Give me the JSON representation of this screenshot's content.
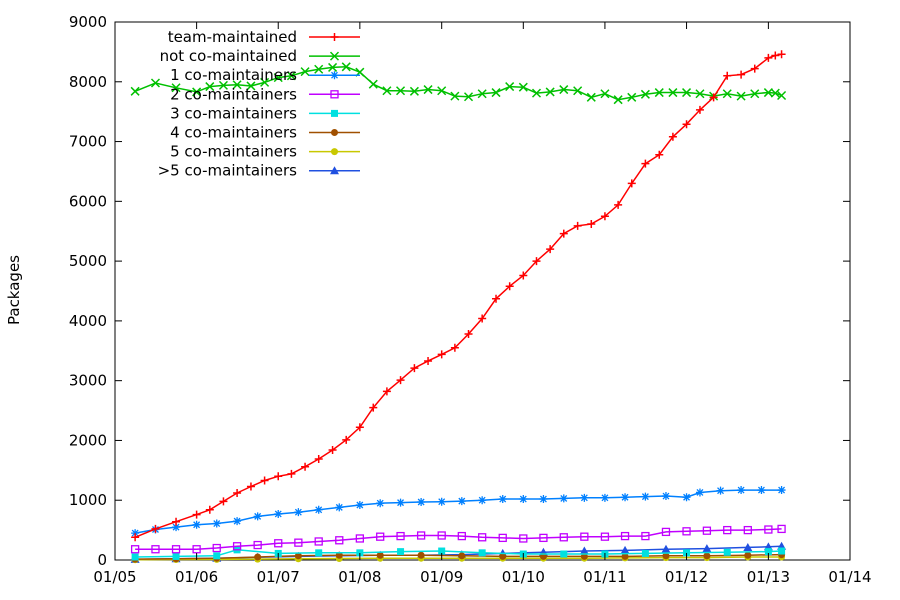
{
  "chart_data": {
    "type": "line",
    "ylabel": "Packages",
    "xlim": [
      "2005-01-01",
      "2014-01-01"
    ],
    "ylim": [
      0,
      9000
    ],
    "x_ticks": [
      {
        "date": "2005-01-01",
        "label": "01/05"
      },
      {
        "date": "2006-01-01",
        "label": "01/06"
      },
      {
        "date": "2007-01-01",
        "label": "01/07"
      },
      {
        "date": "2008-01-01",
        "label": "01/08"
      },
      {
        "date": "2009-01-01",
        "label": "01/09"
      },
      {
        "date": "2010-01-01",
        "label": "01/10"
      },
      {
        "date": "2011-01-01",
        "label": "01/11"
      },
      {
        "date": "2012-01-01",
        "label": "01/12"
      },
      {
        "date": "2013-01-01",
        "label": "01/13"
      },
      {
        "date": "2014-01-01",
        "label": "01/14"
      }
    ],
    "y_ticks": [
      0,
      1000,
      2000,
      3000,
      4000,
      5000,
      6000,
      7000,
      8000,
      9000
    ],
    "grid": false,
    "legend_position": "top-left",
    "series": [
      {
        "name": "team-maintained",
        "color": "#ff0000",
        "marker": "plus",
        "points": [
          [
            "2005-04-01",
            380
          ],
          [
            "2005-07-01",
            520
          ],
          [
            "2005-10-01",
            640
          ],
          [
            "2006-01-01",
            760
          ],
          [
            "2006-03-01",
            840
          ],
          [
            "2006-05-01",
            980
          ],
          [
            "2006-07-01",
            1120
          ],
          [
            "2006-09-01",
            1230
          ],
          [
            "2006-11-01",
            1330
          ],
          [
            "2007-01-01",
            1400
          ],
          [
            "2007-03-01",
            1440
          ],
          [
            "2007-05-01",
            1560
          ],
          [
            "2007-07-01",
            1690
          ],
          [
            "2007-09-01",
            1840
          ],
          [
            "2007-11-01",
            2010
          ],
          [
            "2008-01-01",
            2220
          ],
          [
            "2008-03-01",
            2550
          ],
          [
            "2008-05-01",
            2820
          ],
          [
            "2008-07-01",
            3010
          ],
          [
            "2008-09-01",
            3210
          ],
          [
            "2008-11-01",
            3330
          ],
          [
            "2009-01-01",
            3440
          ],
          [
            "2009-03-01",
            3550
          ],
          [
            "2009-05-01",
            3780
          ],
          [
            "2009-07-01",
            4040
          ],
          [
            "2009-09-01",
            4370
          ],
          [
            "2009-11-01",
            4580
          ],
          [
            "2010-01-01",
            4760
          ],
          [
            "2010-03-01",
            5000
          ],
          [
            "2010-05-01",
            5200
          ],
          [
            "2010-07-01",
            5460
          ],
          [
            "2010-09-01",
            5590
          ],
          [
            "2010-11-01",
            5620
          ],
          [
            "2011-01-01",
            5750
          ],
          [
            "2011-03-01",
            5940
          ],
          [
            "2011-05-01",
            6300
          ],
          [
            "2011-07-01",
            6630
          ],
          [
            "2011-09-01",
            6780
          ],
          [
            "2011-11-01",
            7080
          ],
          [
            "2012-01-01",
            7290
          ],
          [
            "2012-03-01",
            7530
          ],
          [
            "2012-05-01",
            7740
          ],
          [
            "2012-07-01",
            8100
          ],
          [
            "2012-09-01",
            8120
          ],
          [
            "2012-11-01",
            8220
          ],
          [
            "2013-01-01",
            8400
          ],
          [
            "2013-02-01",
            8440
          ],
          [
            "2013-03-01",
            8460
          ]
        ]
      },
      {
        "name": "not co-maintained",
        "color": "#00c000",
        "marker": "x",
        "points": [
          [
            "2005-04-01",
            7840
          ],
          [
            "2005-07-01",
            7980
          ],
          [
            "2005-10-01",
            7900
          ],
          [
            "2006-01-01",
            7830
          ],
          [
            "2006-03-01",
            7920
          ],
          [
            "2006-05-01",
            7940
          ],
          [
            "2006-07-01",
            7950
          ],
          [
            "2006-09-01",
            7930
          ],
          [
            "2006-11-01",
            7990
          ],
          [
            "2007-01-01",
            8070
          ],
          [
            "2007-03-01",
            8100
          ],
          [
            "2007-05-01",
            8170
          ],
          [
            "2007-07-01",
            8210
          ],
          [
            "2007-09-01",
            8240
          ],
          [
            "2007-11-01",
            8250
          ],
          [
            "2008-01-01",
            8160
          ],
          [
            "2008-03-01",
            7960
          ],
          [
            "2008-05-01",
            7850
          ],
          [
            "2008-07-01",
            7850
          ],
          [
            "2008-09-01",
            7840
          ],
          [
            "2008-11-01",
            7870
          ],
          [
            "2009-01-01",
            7850
          ],
          [
            "2009-03-01",
            7760
          ],
          [
            "2009-05-01",
            7750
          ],
          [
            "2009-07-01",
            7800
          ],
          [
            "2009-09-01",
            7820
          ],
          [
            "2009-11-01",
            7920
          ],
          [
            "2010-01-01",
            7910
          ],
          [
            "2010-03-01",
            7810
          ],
          [
            "2010-05-01",
            7830
          ],
          [
            "2010-07-01",
            7870
          ],
          [
            "2010-09-01",
            7850
          ],
          [
            "2010-11-01",
            7740
          ],
          [
            "2011-01-01",
            7800
          ],
          [
            "2011-03-01",
            7700
          ],
          [
            "2011-05-01",
            7740
          ],
          [
            "2011-07-01",
            7790
          ],
          [
            "2011-09-01",
            7820
          ],
          [
            "2011-11-01",
            7820
          ],
          [
            "2012-01-01",
            7820
          ],
          [
            "2012-03-01",
            7800
          ],
          [
            "2012-05-01",
            7760
          ],
          [
            "2012-07-01",
            7800
          ],
          [
            "2012-09-01",
            7760
          ],
          [
            "2012-11-01",
            7800
          ],
          [
            "2013-01-01",
            7820
          ],
          [
            "2013-02-01",
            7810
          ],
          [
            "2013-03-01",
            7770
          ]
        ]
      },
      {
        "name": "1 co-maintainers",
        "color": "#0080ff",
        "marker": "star",
        "points": [
          [
            "2005-04-01",
            450
          ],
          [
            "2005-07-01",
            510
          ],
          [
            "2005-10-01",
            550
          ],
          [
            "2006-01-01",
            590
          ],
          [
            "2006-04-01",
            610
          ],
          [
            "2006-07-01",
            650
          ],
          [
            "2006-10-01",
            730
          ],
          [
            "2007-01-01",
            770
          ],
          [
            "2007-04-01",
            800
          ],
          [
            "2007-07-01",
            840
          ],
          [
            "2007-10-01",
            880
          ],
          [
            "2008-01-01",
            920
          ],
          [
            "2008-04-01",
            950
          ],
          [
            "2008-07-01",
            960
          ],
          [
            "2008-10-01",
            970
          ],
          [
            "2009-01-01",
            975
          ],
          [
            "2009-04-01",
            985
          ],
          [
            "2009-07-01",
            1000
          ],
          [
            "2009-10-01",
            1020
          ],
          [
            "2010-01-01",
            1020
          ],
          [
            "2010-04-01",
            1020
          ],
          [
            "2010-07-01",
            1030
          ],
          [
            "2010-10-01",
            1040
          ],
          [
            "2011-01-01",
            1040
          ],
          [
            "2011-04-01",
            1050
          ],
          [
            "2011-07-01",
            1060
          ],
          [
            "2011-10-01",
            1070
          ],
          [
            "2012-01-01",
            1050
          ],
          [
            "2012-03-01",
            1130
          ],
          [
            "2012-06-01",
            1160
          ],
          [
            "2012-09-01",
            1170
          ],
          [
            "2012-12-01",
            1170
          ],
          [
            "2013-03-01",
            1170
          ]
        ]
      },
      {
        "name": "2 co-maintainers",
        "color": "#c000ff",
        "marker": "square",
        "points": [
          [
            "2005-04-01",
            180
          ],
          [
            "2005-07-01",
            180
          ],
          [
            "2005-10-01",
            180
          ],
          [
            "2006-01-01",
            180
          ],
          [
            "2006-04-01",
            200
          ],
          [
            "2006-07-01",
            230
          ],
          [
            "2006-10-01",
            250
          ],
          [
            "2007-01-01",
            280
          ],
          [
            "2007-04-01",
            290
          ],
          [
            "2007-07-01",
            310
          ],
          [
            "2007-10-01",
            330
          ],
          [
            "2008-01-01",
            360
          ],
          [
            "2008-04-01",
            390
          ],
          [
            "2008-07-01",
            400
          ],
          [
            "2008-10-01",
            410
          ],
          [
            "2009-01-01",
            410
          ],
          [
            "2009-04-01",
            400
          ],
          [
            "2009-07-01",
            380
          ],
          [
            "2009-10-01",
            370
          ],
          [
            "2010-01-01",
            360
          ],
          [
            "2010-04-01",
            370
          ],
          [
            "2010-07-01",
            380
          ],
          [
            "2010-10-01",
            390
          ],
          [
            "2011-01-01",
            390
          ],
          [
            "2011-04-01",
            400
          ],
          [
            "2011-07-01",
            400
          ],
          [
            "2011-10-01",
            470
          ],
          [
            "2012-01-01",
            480
          ],
          [
            "2012-04-01",
            490
          ],
          [
            "2012-07-01",
            500
          ],
          [
            "2012-10-01",
            500
          ],
          [
            "2013-01-01",
            510
          ],
          [
            "2013-03-01",
            520
          ]
        ]
      },
      {
        "name": "3 co-maintainers",
        "color": "#00e0e0",
        "marker": "filled-square",
        "points": [
          [
            "2005-04-01",
            50
          ],
          [
            "2005-10-01",
            60
          ],
          [
            "2006-04-01",
            70
          ],
          [
            "2006-07-01",
            170
          ],
          [
            "2007-01-01",
            110
          ],
          [
            "2007-07-01",
            120
          ],
          [
            "2008-01-01",
            120
          ],
          [
            "2008-07-01",
            140
          ],
          [
            "2009-01-01",
            150
          ],
          [
            "2009-07-01",
            120
          ],
          [
            "2010-01-01",
            100
          ],
          [
            "2010-07-01",
            100
          ],
          [
            "2011-01-01",
            100
          ],
          [
            "2011-07-01",
            110
          ],
          [
            "2012-01-01",
            120
          ],
          [
            "2012-07-01",
            130
          ],
          [
            "2013-01-01",
            140
          ],
          [
            "2013-03-01",
            150
          ]
        ]
      },
      {
        "name": "4 co-maintainers",
        "color": "#a05000",
        "marker": "filled-circle",
        "points": [
          [
            "2005-04-01",
            15
          ],
          [
            "2005-10-01",
            20
          ],
          [
            "2006-04-01",
            30
          ],
          [
            "2006-10-01",
            50
          ],
          [
            "2007-04-01",
            70
          ],
          [
            "2007-10-01",
            80
          ],
          [
            "2008-04-01",
            80
          ],
          [
            "2008-10-01",
            80
          ],
          [
            "2009-04-01",
            70
          ],
          [
            "2009-10-01",
            60
          ],
          [
            "2010-04-01",
            60
          ],
          [
            "2010-10-01",
            60
          ],
          [
            "2011-04-01",
            60
          ],
          [
            "2011-10-01",
            70
          ],
          [
            "2012-04-01",
            70
          ],
          [
            "2012-10-01",
            80
          ],
          [
            "2013-03-01",
            90
          ]
        ]
      },
      {
        "name": "5 co-maintainers",
        "color": "#c8c800",
        "marker": "filled-circle",
        "points": [
          [
            "2005-04-01",
            5
          ],
          [
            "2005-10-01",
            8
          ],
          [
            "2006-04-01",
            10
          ],
          [
            "2006-10-01",
            15
          ],
          [
            "2007-04-01",
            20
          ],
          [
            "2007-10-01",
            25
          ],
          [
            "2008-04-01",
            30
          ],
          [
            "2008-10-01",
            30
          ],
          [
            "2009-04-01",
            30
          ],
          [
            "2009-10-01",
            30
          ],
          [
            "2010-04-01",
            30
          ],
          [
            "2010-10-01",
            30
          ],
          [
            "2011-04-01",
            35
          ],
          [
            "2011-10-01",
            40
          ],
          [
            "2012-04-01",
            40
          ],
          [
            "2012-10-01",
            50
          ],
          [
            "2013-03-01",
            50
          ]
        ]
      },
      {
        "name": ">5 co-maintainers",
        "color": "#2050e0",
        "marker": "filled-triangle",
        "points": [
          [
            "2005-04-01",
            10
          ],
          [
            "2005-10-01",
            20
          ],
          [
            "2006-04-01",
            30
          ],
          [
            "2006-10-01",
            45
          ],
          [
            "2007-04-01",
            60
          ],
          [
            "2007-10-01",
            70
          ],
          [
            "2008-04-01",
            80
          ],
          [
            "2008-10-01",
            80
          ],
          [
            "2009-04-01",
            90
          ],
          [
            "2009-10-01",
            110
          ],
          [
            "2010-04-01",
            130
          ],
          [
            "2010-10-01",
            150
          ],
          [
            "2011-04-01",
            160
          ],
          [
            "2011-10-01",
            180
          ],
          [
            "2012-04-01",
            190
          ],
          [
            "2012-10-01",
            210
          ],
          [
            "2013-01-01",
            220
          ],
          [
            "2013-03-01",
            230
          ]
        ]
      }
    ]
  }
}
